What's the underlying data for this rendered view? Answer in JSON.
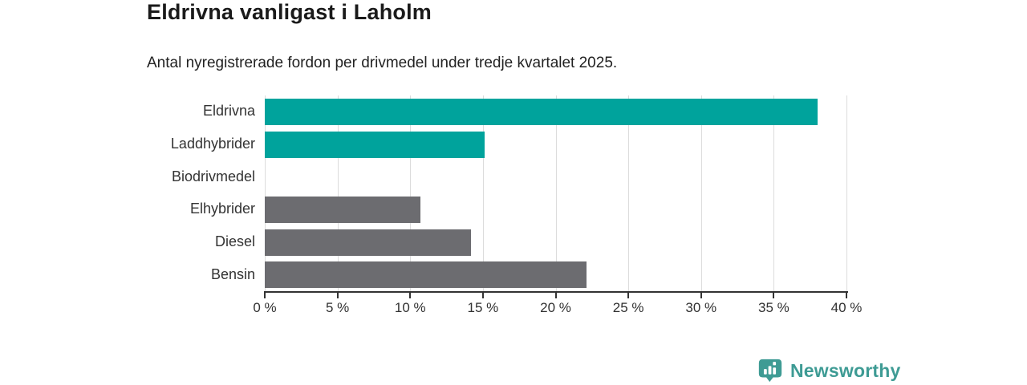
{
  "header": {
    "title": "Eldrivna vanligast i Laholm",
    "subtitle": "Antal nyregistrerade fordon per drivmedel under tredje kvartalet 2025."
  },
  "chart_data": {
    "type": "bar",
    "orientation": "horizontal",
    "title": "Eldrivna vanligast i Laholm",
    "subtitle": "Antal nyregistrerade fordon per drivmedel under tredje kvartalet 2025.",
    "categories": [
      "Eldrivna",
      "Laddhybrider",
      "Biodrivmedel",
      "Elhybrider",
      "Diesel",
      "Bensin"
    ],
    "values": [
      38.0,
      15.1,
      0,
      10.7,
      14.2,
      22.1
    ],
    "unit": "%",
    "xlabel": "",
    "ylabel": "",
    "xlim": [
      0,
      40
    ],
    "x_ticks": [
      0,
      5,
      10,
      15,
      20,
      25,
      30,
      35,
      40
    ],
    "x_tick_labels": [
      "0 %",
      "5 %",
      "10 %",
      "15 %",
      "20 %",
      "25 %",
      "30 %",
      "35 %",
      "40 %"
    ],
    "grid": true,
    "legend": "none",
    "bar_colors": [
      "#00a39c",
      "#00a39c",
      "#6c6c70",
      "#6c6c70",
      "#6c6c70",
      "#6c6c70"
    ]
  },
  "colors": {
    "accent_teal": "#00a39c",
    "neutral_gray": "#6c6c70",
    "axis": "#333333",
    "gridline": "#dcdcdc",
    "title_text": "#1a1a1a",
    "body_text": "#222222",
    "brand_teal": "#3e9b94"
  },
  "footer": {
    "brand": "Newsworthy"
  }
}
